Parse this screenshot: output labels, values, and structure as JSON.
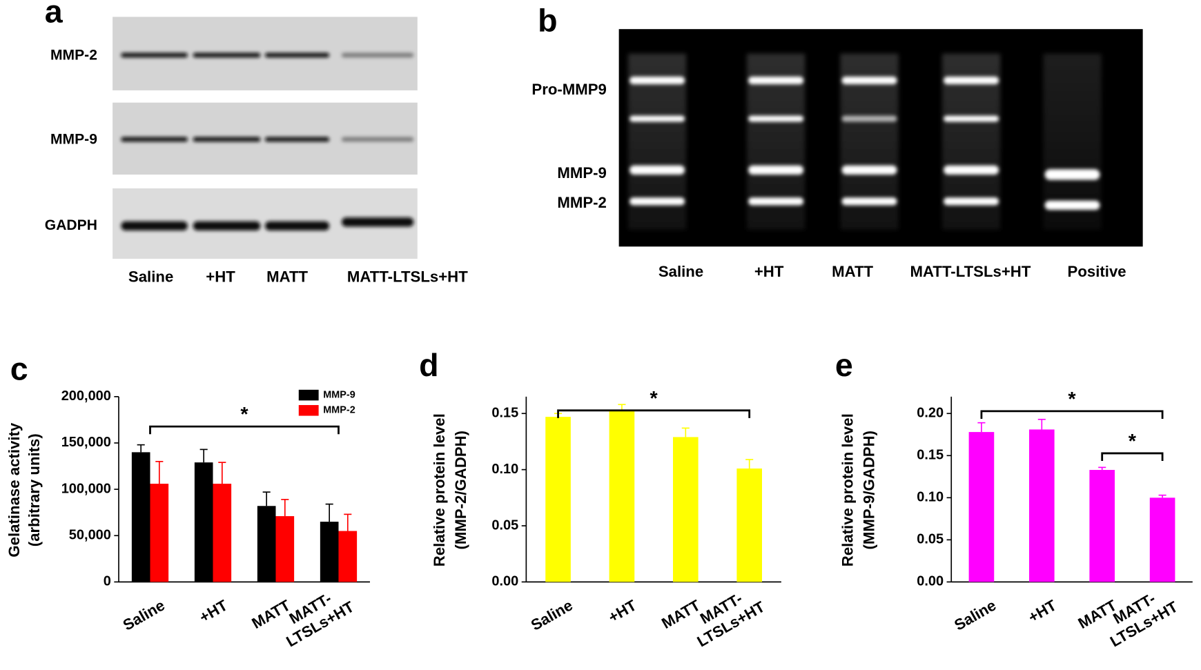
{
  "panel_a": {
    "label": "a",
    "rows": [
      "MMP-2",
      "MMP-9",
      "GADPH"
    ],
    "lanes": [
      "Saline",
      "+HT",
      "MATT",
      "MATT-LTSLs+HT"
    ]
  },
  "panel_b": {
    "label": "b",
    "bands": [
      "Pro-MMP9",
      "MMP-9",
      "MMP-2"
    ],
    "lanes": [
      "Saline",
      "+HT",
      "MATT",
      "MATT-LTSLs+HT",
      "Positive"
    ]
  },
  "chart_data": [
    {
      "type": "bar",
      "panel": "c",
      "ylabel": [
        "Gelatinase activity",
        "(arbitrary units)"
      ],
      "categories": [
        "Saline",
        "+HT",
        "MATT",
        [
          "MATT-",
          "LTSLs+HT"
        ]
      ],
      "series": [
        {
          "name": "MMP-9",
          "color": "#000000",
          "values": [
            140000,
            129000,
            82000,
            65000
          ],
          "errors": [
            8000,
            14000,
            15000,
            19000
          ]
        },
        {
          "name": "MMP-2",
          "color": "#ff0000",
          "values": [
            106000,
            106000,
            71000,
            55000
          ],
          "errors": [
            24000,
            23000,
            18000,
            18000
          ]
        }
      ],
      "ylim": [
        0,
        200000
      ],
      "yticks": [
        0,
        {
          "value": 50000,
          "label": "50,000"
        },
        {
          "value": 100000,
          "label": "100,000"
        },
        {
          "value": 150000,
          "label": "150,000"
        },
        {
          "value": 200000,
          "label": "200,000"
        }
      ],
      "legend": "top-right",
      "significance": [
        {
          "label": "*",
          "from": 0,
          "to": 3
        }
      ]
    },
    {
      "type": "bar",
      "panel": "d",
      "ylabel": [
        "Relative protein level",
        "(MMP-2/GADPH)"
      ],
      "categories": [
        "Saline",
        "+HT",
        "MATT",
        [
          "MATT-",
          "LTSLs+HT"
        ]
      ],
      "series": [
        {
          "color": "#ffff00",
          "values": [
            0.147,
            0.153,
            0.129,
            0.101
          ],
          "errors": [
            0.003,
            0.005,
            0.008,
            0.008
          ]
        }
      ],
      "ylim": [
        0,
        0.165
      ],
      "yticks": [
        {
          "value": 0,
          "label": "0.00"
        },
        0.05,
        {
          "value": 0.1,
          "label": "0.10"
        },
        0.15
      ],
      "significance": [
        {
          "label": "*",
          "from": 0,
          "to": 3
        }
      ]
    },
    {
      "type": "bar",
      "panel": "e",
      "ylabel": [
        "Relative protein level",
        "(MMP-9/GADPH)"
      ],
      "categories": [
        "Saline",
        "+HT",
        "MATT",
        [
          "MATT-",
          "LTSLs+HT"
        ]
      ],
      "series": [
        {
          "color": "#ff00ff",
          "values": [
            0.178,
            0.181,
            0.133,
            0.1
          ],
          "errors": [
            0.011,
            0.012,
            0.003,
            0.003
          ]
        }
      ],
      "ylim": [
        0,
        0.22
      ],
      "yticks": [
        {
          "value": 0,
          "label": "0.00"
        },
        0.05,
        {
          "value": 0.1,
          "label": "0.10"
        },
        0.15,
        {
          "value": 0.2,
          "label": "0.20"
        }
      ],
      "significance": [
        {
          "label": "*",
          "from": 0,
          "to": 3
        },
        {
          "label": "*",
          "from": 2,
          "to": 3
        }
      ]
    }
  ]
}
